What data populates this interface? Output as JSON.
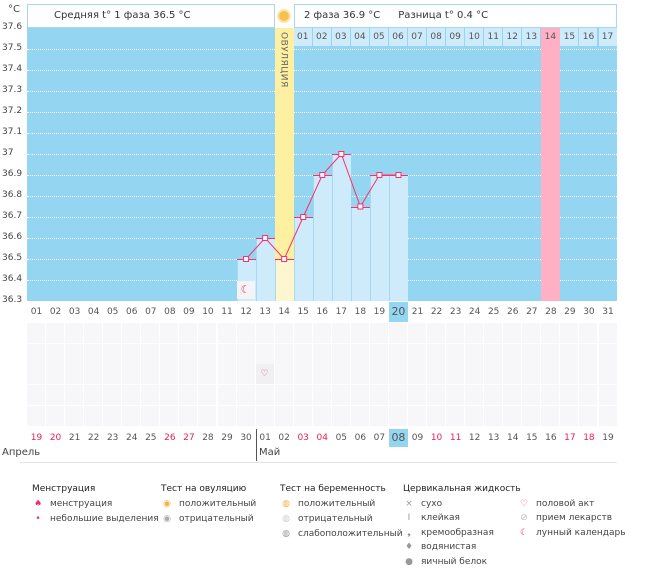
{
  "y_unit": "°C",
  "header": {
    "phase1": "Средняя t° 1 фаза  36.5 °C",
    "phase2": "2 фаза  36.9 °C",
    "diff": "Разница t° 0.4 °C",
    "ovulation_label": "ОВУЛЯЦИЯ"
  },
  "chart_data": {
    "type": "line",
    "ylim": [
      36.3,
      37.6
    ],
    "yticks": [
      "37.6",
      "37.5",
      "37.4",
      "37.3",
      "37.2",
      "37.1",
      "37",
      "36.9",
      "36.8",
      "36.7",
      "36.6",
      "36.5",
      "36.4",
      "36.3"
    ],
    "cycle_days": [
      "01",
      "02",
      "03",
      "04",
      "05",
      "06",
      "07",
      "08",
      "09",
      "10",
      "11",
      "12",
      "13",
      "14",
      "15",
      "16",
      "17",
      "18",
      "19",
      "20",
      "21",
      "22",
      "23",
      "24",
      "25",
      "26",
      "27",
      "28",
      "29",
      "30",
      "31"
    ],
    "temperatures": [
      {
        "day": 12,
        "t": 36.5
      },
      {
        "day": 13,
        "t": 36.6
      },
      {
        "day": 14,
        "t": 36.5
      },
      {
        "day": 15,
        "t": 36.7
      },
      {
        "day": 16,
        "t": 36.9
      },
      {
        "day": 17,
        "t": 37.0
      },
      {
        "day": 18,
        "t": 36.75
      },
      {
        "day": 19,
        "t": 36.9
      },
      {
        "day": 20,
        "t": 36.9
      }
    ],
    "ovulation_day": 14,
    "current_day": 20,
    "second_phase_days": [
      "01",
      "02",
      "03",
      "04",
      "05",
      "06",
      "07",
      "08",
      "09",
      "10",
      "11",
      "12",
      "13",
      "14",
      "15",
      "16",
      "17"
    ],
    "highlight_phase_day": "14",
    "moon_day": 12,
    "intercourse_day": 13,
    "calendar_dates": [
      "19",
      "20",
      "21",
      "22",
      "23",
      "24",
      "25",
      "26",
      "27",
      "28",
      "29",
      "30",
      "01",
      "02",
      "03",
      "04",
      "05",
      "06",
      "07",
      "08",
      "09",
      "10",
      "11",
      "12",
      "13",
      "14",
      "15",
      "16",
      "17",
      "18",
      "19"
    ],
    "weekend_dates_idx": [
      0,
      1,
      7,
      8,
      14,
      15,
      21,
      22,
      28,
      29
    ],
    "months": [
      {
        "name": "Апрель"
      },
      {
        "name": "Май"
      }
    ]
  },
  "colors": {
    "bg": "#94d6f2",
    "bar": "#cdebfb",
    "ovulation": "#fdf0a0",
    "line": "#ff2d6b",
    "pink": "#ffb0c4",
    "weekend": "#e8204f"
  },
  "legend": {
    "menstruation": {
      "title": "Менструация",
      "items": [
        "менструация",
        "небольшие выделения"
      ]
    },
    "ovulation_test": {
      "title": "Тест на овуляцию",
      "items": [
        "положительный",
        "отрицательный"
      ]
    },
    "pregnancy_test": {
      "title": "Тест на беременность",
      "items": [
        "положительный",
        "отрицательный",
        "слабоположительный"
      ]
    },
    "cervical": {
      "title": "Цервикальная жидкость",
      "items": [
        "сухо",
        "клейкая",
        "кремообразная",
        "водянистая",
        "яичный белок"
      ]
    },
    "other": {
      "items": [
        "половой акт",
        "прием лекарств",
        "лунный календарь"
      ]
    }
  }
}
